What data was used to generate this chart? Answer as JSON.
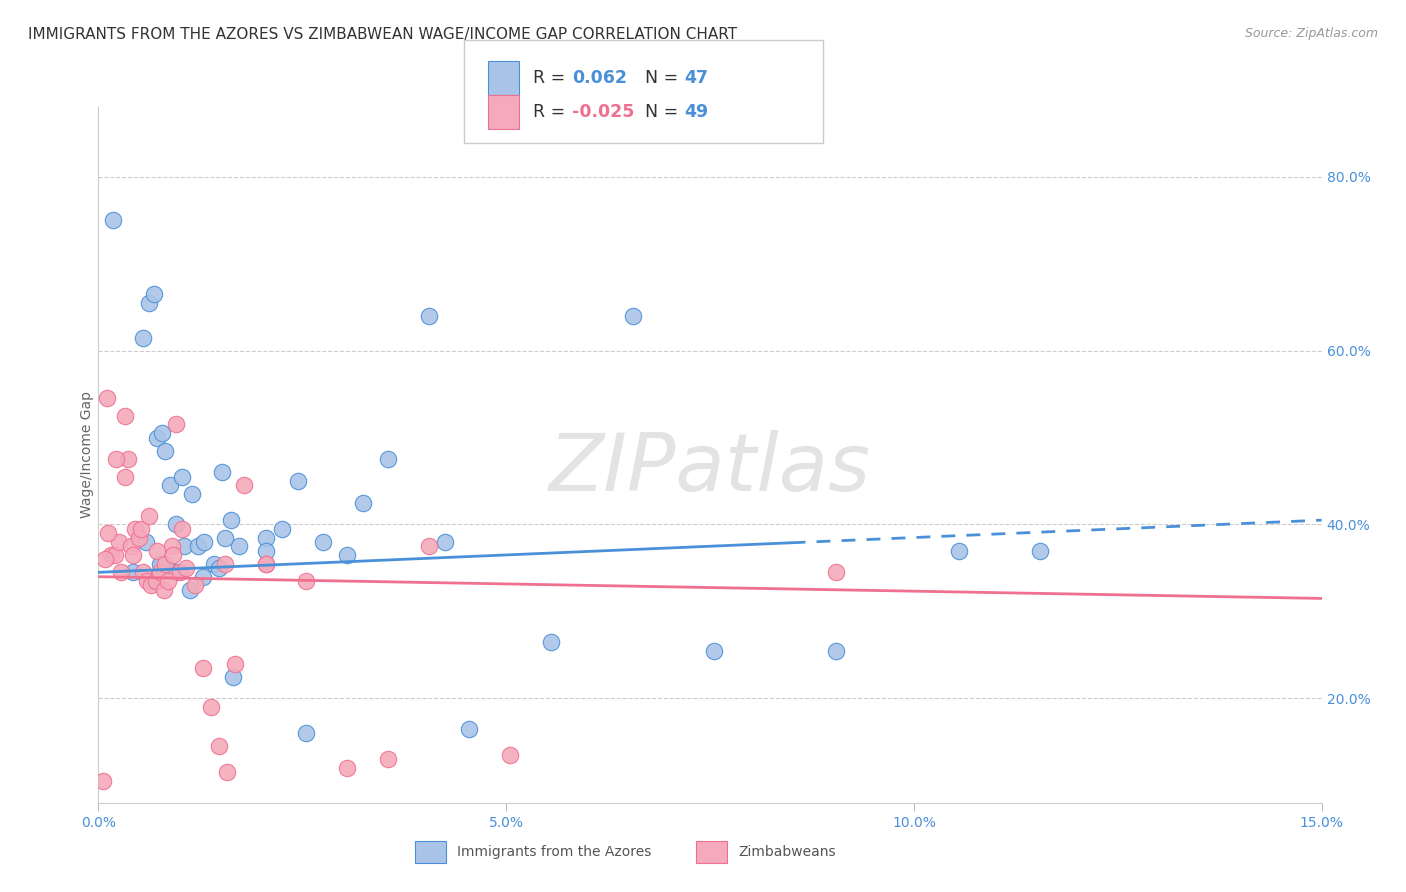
{
  "title": "IMMIGRANTS FROM THE AZORES VS ZIMBABWEAN WAGE/INCOME GAP CORRELATION CHART",
  "source": "Source: ZipAtlas.com",
  "ylabel": "Wage/Income Gap",
  "x_tick_labels": [
    "0.0%",
    "5.0%",
    "10.0%",
    "15.0%"
  ],
  "x_tick_values": [
    0.0,
    5.0,
    10.0,
    15.0
  ],
  "y_tick_labels": [
    "20.0%",
    "40.0%",
    "60.0%",
    "80.0%"
  ],
  "y_tick_values": [
    20.0,
    40.0,
    60.0,
    80.0
  ],
  "xlim": [
    0.0,
    15.0
  ],
  "ylim": [
    8.0,
    88.0
  ],
  "legend_label1": "Immigrants from the Azores",
  "legend_label2": "Zimbabweans",
  "R1": "0.062",
  "N1": "47",
  "R2": "-0.025",
  "N2": "49",
  "color_blue": "#aac4e8",
  "color_pink": "#f4aabb",
  "trend_blue": "#4a90d9",
  "trend_pink": "#f07090",
  "watermark": "ZIPatlas",
  "blue_x": [
    0.18,
    0.55,
    0.62,
    0.68,
    0.72,
    0.78,
    0.82,
    0.88,
    0.95,
    1.05,
    1.15,
    1.22,
    1.3,
    1.42,
    1.52,
    1.62,
    1.72,
    2.05,
    2.25,
    2.45,
    2.75,
    3.05,
    3.25,
    3.55,
    4.05,
    4.25,
    5.55,
    6.55,
    7.55,
    9.05,
    10.55,
    11.55,
    0.42,
    0.58,
    0.78,
    1.02,
    1.55,
    2.05,
    0.65,
    0.75,
    0.95,
    1.12,
    1.28,
    1.48,
    1.65,
    2.55,
    4.55
  ],
  "blue_y": [
    75.0,
    61.5,
    65.5,
    66.5,
    50.0,
    50.5,
    48.5,
    44.5,
    40.0,
    37.5,
    43.5,
    37.5,
    38.0,
    35.5,
    46.0,
    40.5,
    37.5,
    38.5,
    39.5,
    45.0,
    38.0,
    36.5,
    42.5,
    47.5,
    64.0,
    38.0,
    26.5,
    64.0,
    25.5,
    25.5,
    37.0,
    37.0,
    34.5,
    38.0,
    35.5,
    45.5,
    38.5,
    37.0,
    33.5,
    35.5,
    34.5,
    32.5,
    34.0,
    35.0,
    22.5,
    16.0,
    16.5
  ],
  "pink_x": [
    0.06,
    0.1,
    0.15,
    0.2,
    0.25,
    0.28,
    0.32,
    0.36,
    0.4,
    0.45,
    0.5,
    0.55,
    0.6,
    0.65,
    0.7,
    0.75,
    0.8,
    0.85,
    0.9,
    0.95,
    1.0,
    1.08,
    1.18,
    1.28,
    1.38,
    1.48,
    1.58,
    1.68,
    1.78,
    2.05,
    2.55,
    3.05,
    3.55,
    4.05,
    5.05,
    9.05,
    0.12,
    0.22,
    0.32,
    0.42,
    0.52,
    0.62,
    0.72,
    0.82,
    0.92,
    1.02,
    1.55,
    2.05,
    0.08
  ],
  "pink_y": [
    10.5,
    54.5,
    36.5,
    36.5,
    38.0,
    34.5,
    52.5,
    47.5,
    37.5,
    39.5,
    38.5,
    34.5,
    33.5,
    33.0,
    33.5,
    34.5,
    32.5,
    33.5,
    37.5,
    51.5,
    34.5,
    35.0,
    33.0,
    23.5,
    19.0,
    14.5,
    11.5,
    24.0,
    44.5,
    35.5,
    33.5,
    12.0,
    13.0,
    37.5,
    13.5,
    34.5,
    39.0,
    47.5,
    45.5,
    36.5,
    39.5,
    41.0,
    37.0,
    35.5,
    36.5,
    39.5,
    35.5,
    35.5,
    36.0
  ],
  "blue_trend_x0": 0.0,
  "blue_trend_y0": 34.5,
  "blue_trend_x1": 15.0,
  "blue_trend_y1": 40.5,
  "blue_solid_end": 8.5,
  "pink_trend_x0": 0.0,
  "pink_trend_y0": 34.0,
  "pink_trend_x1": 15.0,
  "pink_trend_y1": 31.5
}
